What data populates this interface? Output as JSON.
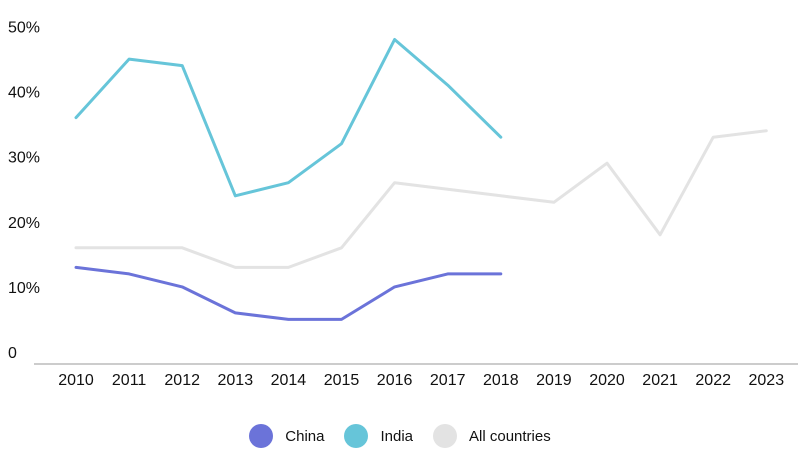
{
  "chart_data": {
    "type": "line",
    "x": [
      "2010",
      "2011",
      "2012",
      "2013",
      "2014",
      "2015",
      "2016",
      "2017",
      "2018",
      "2019",
      "2020",
      "2021",
      "2022",
      "2023"
    ],
    "ylim": [
      0,
      50
    ],
    "yticks": [
      0,
      10,
      20,
      30,
      40,
      50
    ],
    "ytick_labels": [
      "0",
      "10%",
      "20%",
      "30%",
      "40%",
      "50%"
    ],
    "grid": false,
    "legend_position": "bottom",
    "series": [
      {
        "name": "All countries",
        "color": "#e3e3e3",
        "values": [
          16,
          16,
          16,
          13,
          13,
          16,
          26,
          25,
          24,
          23,
          29,
          18,
          33,
          34
        ]
      },
      {
        "name": "India",
        "color": "#66c5d9",
        "values": [
          36,
          45,
          44,
          24,
          26,
          32,
          48,
          41,
          33,
          null,
          null,
          null,
          null,
          null
        ]
      },
      {
        "name": "China",
        "color": "#6b73d9",
        "values": [
          13,
          12,
          10,
          6,
          5,
          5,
          10,
          12,
          12,
          null,
          null,
          null,
          null,
          null
        ]
      }
    ]
  },
  "legend": {
    "items": [
      {
        "label": "China",
        "color": "#6b73d9"
      },
      {
        "label": "India",
        "color": "#66c5d9"
      },
      {
        "label": "All countries",
        "color": "#e3e3e3"
      }
    ]
  }
}
